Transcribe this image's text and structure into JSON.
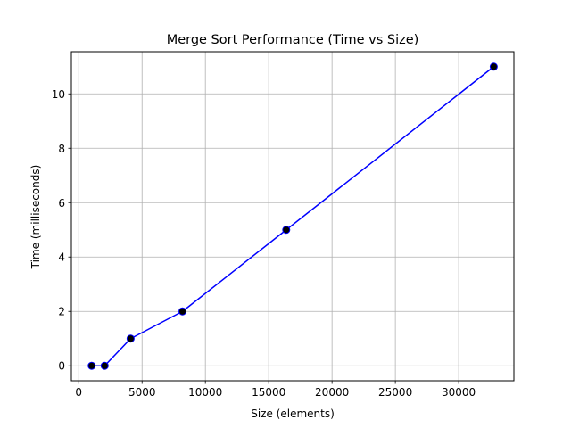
{
  "chart_data": {
    "type": "line",
    "title": "Merge Sort Performance (Time vs Size)",
    "xlabel": "Size (elements)",
    "ylabel": "Time (milliseconds)",
    "xlim": [
      -580,
      34360
    ],
    "ylim": [
      -0.55,
      11.55
    ],
    "xticks": [
      0,
      5000,
      10000,
      15000,
      20000,
      25000,
      30000
    ],
    "yticks": [
      0,
      2,
      4,
      6,
      8,
      10
    ],
    "grid": true,
    "series": [
      {
        "x": [
          1024,
          2048,
          4096,
          8192,
          16384,
          32768
        ],
        "y": [
          0,
          0,
          1,
          2,
          5,
          11
        ],
        "line_color": "#0000ff",
        "marker_color": "#000000",
        "marker_edge_color": "#0000ff"
      }
    ]
  }
}
